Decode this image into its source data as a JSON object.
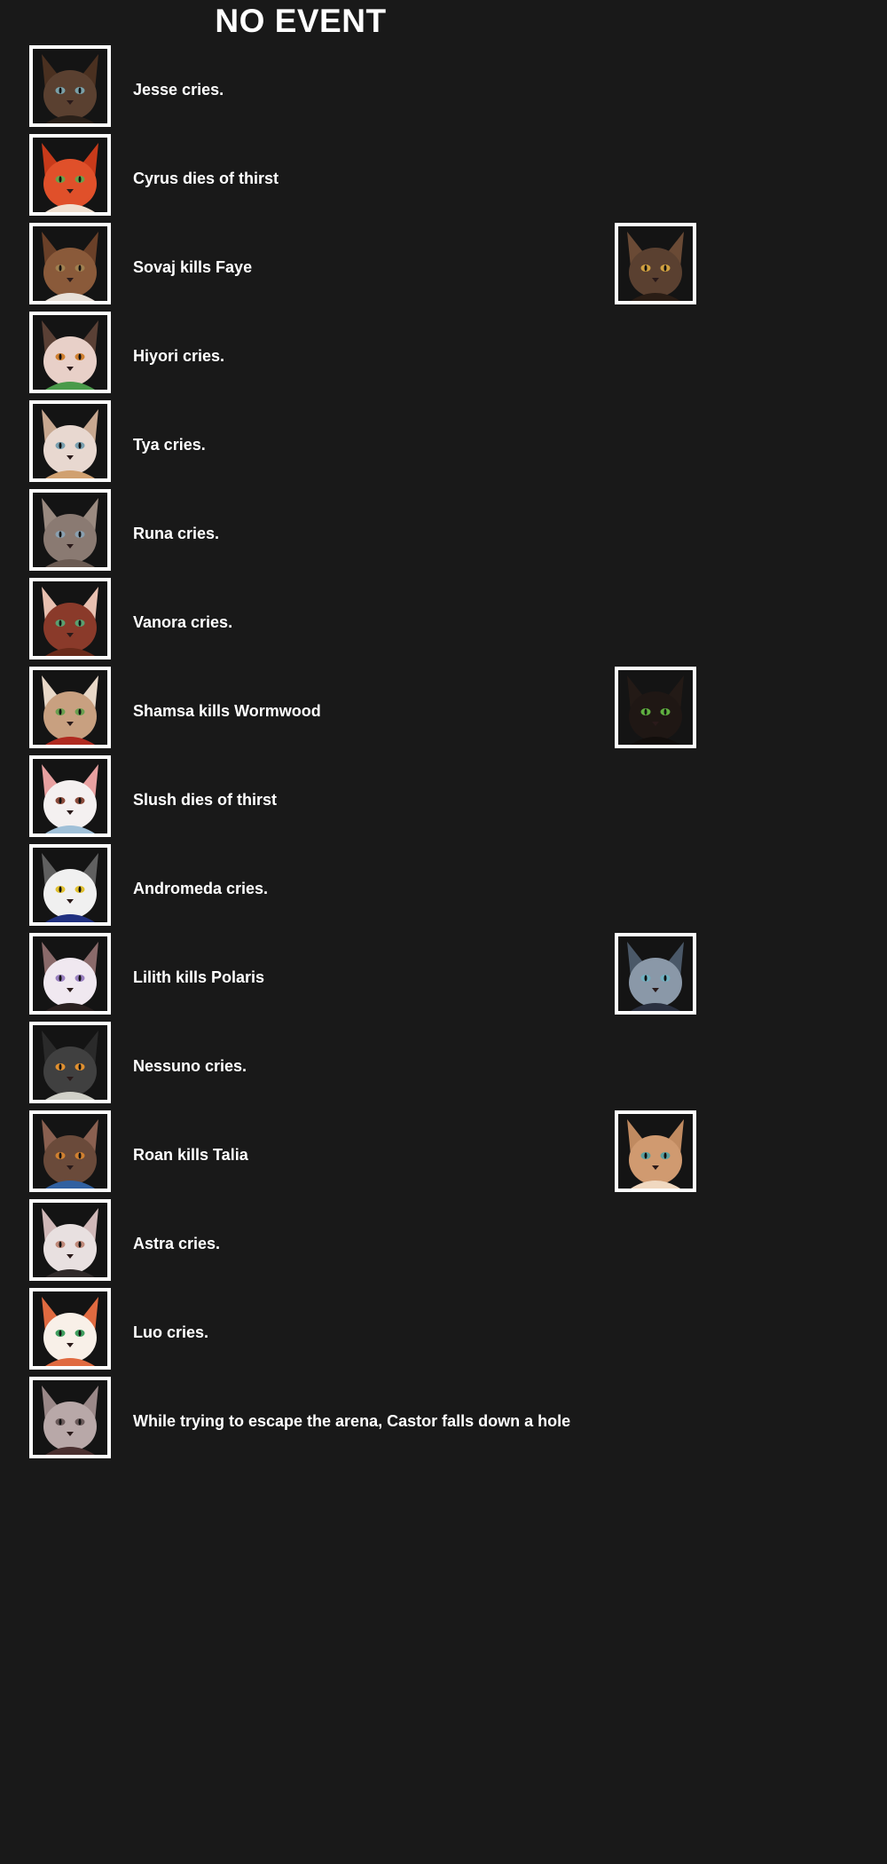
{
  "page": {
    "title": "NO EVENT"
  },
  "events": [
    {
      "text": "Jesse cries.",
      "avatar": {
        "name": "cat-portrait-jesse",
        "fur": "#5a4030",
        "ear": "#4a3020",
        "eyes": "#7aa0a8",
        "accent": "#2a2019"
      }
    },
    {
      "text": "Cyrus dies of thirst",
      "avatar": {
        "name": "cat-portrait-cyrus",
        "fur": "#e0502a",
        "ear": "#c83a1a",
        "eyes": "#6aa04a",
        "accent": "#f0e0d0"
      }
    },
    {
      "text": "Sovaj kills Faye",
      "avatar": {
        "name": "cat-portrait-sovaj",
        "fur": "#8a5a3a",
        "ear": "#6a4028",
        "eyes": "#a08050",
        "accent": "#e8e0d8"
      },
      "victim": {
        "name": "cat-portrait-faye",
        "fur": "#5a4030",
        "ear": "#6a4a35",
        "eyes": "#d0a040",
        "accent": "#2a1d15"
      }
    },
    {
      "text": "Hiyori cries.",
      "avatar": {
        "name": "cat-portrait-hiyori",
        "fur": "#e8d0c8",
        "ear": "#5a4035",
        "eyes": "#d08030",
        "accent": "#4a9a4a"
      }
    },
    {
      "text": "Tya cries.",
      "avatar": {
        "name": "cat-portrait-tya",
        "fur": "#e8d8d0",
        "ear": "#c8a890",
        "eyes": "#7aa0b0",
        "accent": "#d0a070"
      }
    },
    {
      "text": "Runa cries.",
      "avatar": {
        "name": "cat-portrait-runa",
        "fur": "#8a7a72",
        "ear": "#9a8a80",
        "eyes": "#8aa0b0",
        "accent": "#6a5a52"
      }
    },
    {
      "text": "Vanora cries.",
      "avatar": {
        "name": "cat-portrait-vanora",
        "fur": "#8a3a2a",
        "ear": "#e8c0b0",
        "eyes": "#5aa070",
        "accent": "#6a2a1a"
      }
    },
    {
      "text": "Shamsa kills Wormwood",
      "avatar": {
        "name": "cat-portrait-shamsa",
        "fur": "#c8a080",
        "ear": "#e8d8c8",
        "eyes": "#6aa050",
        "accent": "#b02a20"
      },
      "victim": {
        "name": "cat-portrait-wormwood",
        "fur": "#1f1714",
        "ear": "#231a16",
        "eyes": "#60b040",
        "accent": "#120e0c"
      }
    },
    {
      "text": "Slush dies of thirst",
      "avatar": {
        "name": "cat-portrait-slush",
        "fur": "#f4f0f0",
        "ear": "#e8a0a0",
        "eyes": "#8a4a3a",
        "accent": "#a0c0d8"
      }
    },
    {
      "text": "Andromeda cries.",
      "avatar": {
        "name": "cat-portrait-andromeda",
        "fur": "#f0f0f0",
        "ear": "#606060",
        "eyes": "#e0c030",
        "accent": "#203080"
      }
    },
    {
      "text": "Lilith kills Polaris",
      "avatar": {
        "name": "cat-portrait-lilith",
        "fur": "#f0e8f0",
        "ear": "#8a6a6a",
        "eyes": "#9a80c0",
        "accent": "#2a2020"
      },
      "victim": {
        "name": "cat-portrait-polaris",
        "fur": "#8a98a8",
        "ear": "#4a5868",
        "eyes": "#70b0c0",
        "accent": "#2a3040"
      }
    },
    {
      "text": "Nessuno cries.",
      "avatar": {
        "name": "cat-portrait-nessuno",
        "fur": "#404040",
        "ear": "#2a2a2a",
        "eyes": "#e09030",
        "accent": "#d0d0c8"
      }
    },
    {
      "text": "Roan kills Talia",
      "avatar": {
        "name": "cat-portrait-roan",
        "fur": "#6a4a3a",
        "ear": "#8a6050",
        "eyes": "#d08030",
        "accent": "#3060a0"
      },
      "victim": {
        "name": "cat-portrait-talia",
        "fur": "#d09a70",
        "ear": "#c08a60",
        "eyes": "#5aa0a0",
        "accent": "#f0d8c0"
      }
    },
    {
      "text": "Astra cries.",
      "avatar": {
        "name": "cat-portrait-astra",
        "fur": "#e8e0e0",
        "ear": "#d0b8b8",
        "eyes": "#c08a7a",
        "accent": "#302a2a"
      }
    },
    {
      "text": "Luo cries.",
      "avatar": {
        "name": "cat-portrait-luo",
        "fur": "#f8f0e8",
        "ear": "#e06a40",
        "eyes": "#40a060",
        "accent": "#e06a40"
      }
    },
    {
      "text": "While trying to escape the arena, Castor falls down a hole",
      "avatar": {
        "name": "cat-portrait-castor",
        "fur": "#b8a8a8",
        "ear": "#9a8888",
        "eyes": "#6a5a5a",
        "accent": "#4a3030"
      }
    }
  ]
}
